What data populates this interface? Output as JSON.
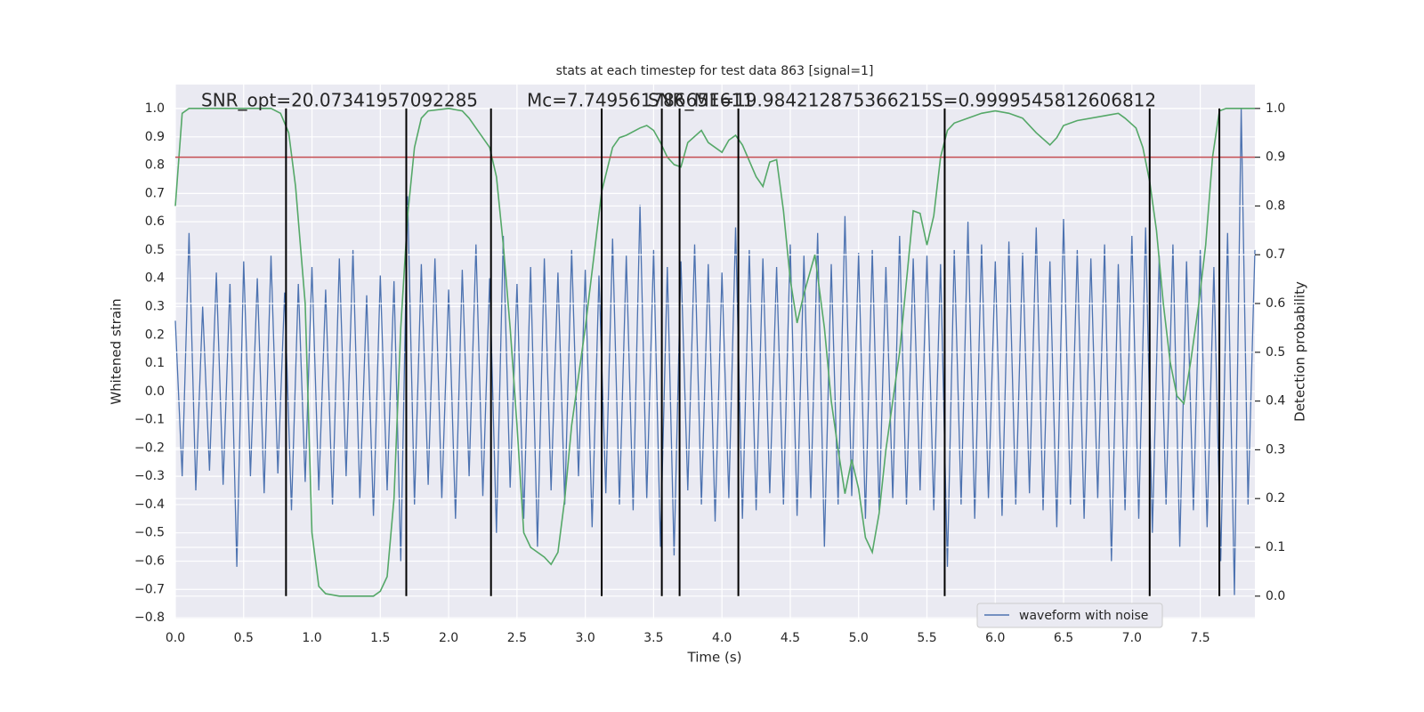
{
  "chart_data": {
    "type": "line",
    "title": "stats at each timestep for test data 863 [signal=1]",
    "xlabel": "Time (s)",
    "ylabel": "Whitened strain",
    "y2label": "Detection probability",
    "annotations": [
      "SNR_opt=20.07341957092285",
      "Mc=7.749561786651611",
      "SNR_MF=19.984212875366215",
      "S=0.9999545812606812"
    ],
    "xlim": [
      0,
      7.9
    ],
    "ylim": [
      -0.803,
      1.085
    ],
    "y2lim": [
      -0.046,
      1.049
    ],
    "xticks": [
      {
        "value": 0,
        "label": "0.0"
      },
      0.5,
      {
        "value": 1,
        "label": "1.0"
      },
      1.5,
      {
        "value": 2,
        "label": "2.0"
      },
      2.5,
      {
        "value": 3,
        "label": "3.0"
      },
      3.5,
      {
        "value": 4,
        "label": "4.0"
      },
      4.5,
      {
        "value": 5,
        "label": "5.0"
      },
      5.5,
      {
        "value": 6,
        "label": "6.0"
      },
      6.5,
      {
        "value": 7,
        "label": "7.0"
      },
      7.5
    ],
    "yticks": [
      {
        "value": -0.8,
        "label": "−0.8"
      },
      {
        "value": -0.7,
        "label": "−0.7"
      },
      {
        "value": -0.6,
        "label": "−0.6"
      },
      {
        "value": -0.5,
        "label": "−0.5"
      },
      {
        "value": -0.4,
        "label": "−0.4"
      },
      {
        "value": -0.3,
        "label": "−0.3"
      },
      {
        "value": -0.2,
        "label": "−0.2"
      },
      {
        "value": -0.1,
        "label": "−0.1"
      },
      {
        "value": 0,
        "label": "0.0"
      },
      0.1,
      0.2,
      0.3,
      0.4,
      0.5,
      0.6,
      0.7,
      0.8,
      0.9,
      {
        "value": 1,
        "label": "1.0"
      }
    ],
    "y2ticks": [
      {
        "value": 0,
        "label": "0.0"
      },
      0.1,
      0.2,
      0.3,
      0.4,
      0.5,
      0.6,
      0.7,
      0.8,
      0.9,
      {
        "value": 1,
        "label": "1.0"
      }
    ],
    "grid": true,
    "legend": "lower right",
    "series": [
      {
        "name": "waveform with noise",
        "color": "#4c72b0",
        "x": [
          0,
          0.05,
          0.1,
          0.15,
          0.2,
          0.25,
          0.3,
          0.35,
          0.4,
          0.45,
          0.5,
          0.55,
          0.6,
          0.65,
          0.7,
          0.75,
          0.8,
          0.85,
          0.9,
          0.95,
          1,
          1.05,
          1.1,
          1.15,
          1.2,
          1.25,
          1.3,
          1.35,
          1.4,
          1.45,
          1.5,
          1.55,
          1.6,
          1.65,
          1.7,
          1.75,
          1.8,
          1.85,
          1.9,
          1.95,
          2,
          2.05,
          2.1,
          2.15,
          2.2,
          2.25,
          2.3,
          2.35,
          2.4,
          2.45,
          2.5,
          2.55,
          2.6,
          2.65,
          2.7,
          2.75,
          2.8,
          2.85,
          2.9,
          2.95,
          3,
          3.05,
          3.1,
          3.15,
          3.2,
          3.25,
          3.3,
          3.35,
          3.4,
          3.45,
          3.5,
          3.55,
          3.6,
          3.65,
          3.7,
          3.75,
          3.8,
          3.85,
          3.9,
          3.95,
          4,
          4.05,
          4.1,
          4.15,
          4.2,
          4.25,
          4.3,
          4.35,
          4.4,
          4.45,
          4.5,
          4.55,
          4.6,
          4.65,
          4.7,
          4.75,
          4.8,
          4.85,
          4.9,
          4.95,
          5,
          5.05,
          5.1,
          5.15,
          5.2,
          5.25,
          5.3,
          5.35,
          5.4,
          5.45,
          5.5,
          5.55,
          5.6,
          5.65,
          5.7,
          5.75,
          5.8,
          5.85,
          5.9,
          5.95,
          6,
          6.05,
          6.1,
          6.15,
          6.2,
          6.25,
          6.3,
          6.35,
          6.4,
          6.45,
          6.5,
          6.55,
          6.6,
          6.65,
          6.7,
          6.75,
          6.8,
          6.85,
          6.9,
          6.95,
          7,
          7.05,
          7.1,
          7.15,
          7.2,
          7.25,
          7.3,
          7.35,
          7.4,
          7.45,
          7.5,
          7.55,
          7.6,
          7.65,
          7.7,
          7.75,
          7.8,
          7.85,
          7.9
        ],
        "values": [
          0.25,
          -0.3,
          0.56,
          -0.35,
          0.3,
          -0.28,
          0.42,
          -0.33,
          0.38,
          -0.62,
          0.46,
          -0.3,
          0.4,
          -0.36,
          0.48,
          -0.29,
          0.35,
          -0.42,
          0.38,
          -0.32,
          0.44,
          -0.35,
          0.36,
          -0.4,
          0.47,
          -0.3,
          0.5,
          -0.38,
          0.34,
          -0.44,
          0.41,
          -0.35,
          0.39,
          -0.6,
          0.69,
          -0.4,
          0.45,
          -0.33,
          0.47,
          -0.38,
          0.36,
          -0.45,
          0.43,
          -0.3,
          0.52,
          -0.37,
          0.4,
          -0.5,
          0.55,
          -0.34,
          0.38,
          -0.45,
          0.44,
          -0.55,
          0.47,
          -0.35,
          0.42,
          -0.4,
          0.5,
          -0.3,
          0.43,
          -0.48,
          0.41,
          -0.36,
          0.54,
          -0.4,
          0.48,
          -0.42,
          0.66,
          -0.38,
          0.5,
          -0.55,
          0.44,
          -0.58,
          0.46,
          -0.35,
          0.52,
          -0.4,
          0.45,
          -0.46,
          0.42,
          -0.38,
          0.58,
          -0.45,
          0.5,
          -0.42,
          0.47,
          -0.36,
          0.44,
          -0.4,
          0.52,
          -0.44,
          0.48,
          -0.38,
          0.56,
          -0.55,
          0.45,
          -0.4,
          0.62,
          -0.37,
          0.49,
          -0.45,
          0.5,
          -0.42,
          0.44,
          -0.38,
          0.55,
          -0.4,
          0.47,
          -0.35,
          0.48,
          -0.42,
          0.45,
          -0.62,
          0.5,
          -0.4,
          0.6,
          -0.45,
          0.52,
          -0.38,
          0.46,
          -0.44,
          0.53,
          -0.4,
          0.49,
          -0.36,
          0.58,
          -0.42,
          0.46,
          -0.48,
          0.61,
          -0.4,
          0.5,
          -0.45,
          0.47,
          -0.38,
          0.52,
          -0.6,
          0.45,
          -0.42,
          0.55,
          -0.45,
          0.58,
          -0.5,
          0.48,
          -0.4,
          0.52,
          -0.55,
          0.46,
          -0.42,
          0.5,
          -0.48,
          0.44,
          -0.6,
          0.56,
          -0.72,
          1.0,
          -0.4,
          0.5
        ]
      },
      {
        "color": "#55a868",
        "axis": "y2",
        "x": [
          0,
          0.05,
          0.1,
          0.7,
          0.77,
          0.83,
          0.88,
          0.95,
          1,
          1.05,
          1.1,
          1.2,
          1.45,
          1.5,
          1.55,
          1.6,
          1.65,
          1.7,
          1.75,
          1.8,
          1.85,
          2,
          2.1,
          2.15,
          2.2,
          2.3,
          2.35,
          2.4,
          2.45,
          2.5,
          2.55,
          2.6,
          2.7,
          2.75,
          2.8,
          2.85,
          2.9,
          3,
          3.12,
          3.2,
          3.25,
          3.3,
          3.4,
          3.45,
          3.5,
          3.55,
          3.6,
          3.65,
          3.7,
          3.75,
          3.85,
          3.9,
          4,
          4.05,
          4.1,
          4.15,
          4.25,
          4.3,
          4.35,
          4.4,
          4.45,
          4.5,
          4.55,
          4.6,
          4.68,
          4.75,
          4.8,
          4.85,
          4.9,
          4.95,
          5,
          5.05,
          5.1,
          5.15,
          5.2,
          5.3,
          5.4,
          5.45,
          5.5,
          5.55,
          5.6,
          5.65,
          5.7,
          5.8,
          5.9,
          6,
          6.1,
          6.2,
          6.3,
          6.4,
          6.45,
          6.5,
          6.6,
          6.8,
          6.9,
          6.95,
          7.03,
          7.08,
          7.13,
          7.18,
          7.23,
          7.28,
          7.33,
          7.38,
          7.43,
          7.49,
          7.54,
          7.59,
          7.64,
          7.69,
          7.74,
          7.9
        ],
        "values": [
          0.8,
          0.99,
          1.0,
          1.0,
          0.99,
          0.95,
          0.84,
          0.6,
          0.13,
          0.02,
          0.005,
          0.0,
          0.0,
          0.01,
          0.04,
          0.2,
          0.55,
          0.78,
          0.92,
          0.98,
          0.995,
          1.0,
          0.995,
          0.98,
          0.96,
          0.92,
          0.86,
          0.72,
          0.55,
          0.35,
          0.13,
          0.1,
          0.08,
          0.065,
          0.09,
          0.2,
          0.35,
          0.55,
          0.83,
          0.92,
          0.94,
          0.945,
          0.96,
          0.965,
          0.955,
          0.93,
          0.9,
          0.885,
          0.88,
          0.93,
          0.955,
          0.93,
          0.91,
          0.935,
          0.945,
          0.925,
          0.86,
          0.84,
          0.89,
          0.895,
          0.79,
          0.65,
          0.56,
          0.62,
          0.7,
          0.55,
          0.4,
          0.3,
          0.21,
          0.28,
          0.22,
          0.12,
          0.09,
          0.17,
          0.3,
          0.5,
          0.79,
          0.785,
          0.72,
          0.78,
          0.9,
          0.955,
          0.97,
          0.98,
          0.99,
          0.995,
          0.99,
          0.98,
          0.95,
          0.925,
          0.94,
          0.965,
          0.975,
          0.985,
          0.99,
          0.98,
          0.96,
          0.92,
          0.85,
          0.75,
          0.6,
          0.48,
          0.41,
          0.395,
          0.48,
          0.6,
          0.72,
          0.9,
          0.995,
          1.0,
          1.0,
          1.0
        ]
      }
    ],
    "hlines": [
      {
        "y": 0.9,
        "color": "#c44e52",
        "axis": "y2"
      }
    ],
    "vlines": {
      "x": [
        0.81,
        1.69,
        2.31,
        3.12,
        3.56,
        3.69,
        4.12,
        5.63,
        7.13,
        7.64
      ],
      "ymin": 0,
      "ymax": 1,
      "color": "#000000",
      "axis": "y2"
    }
  }
}
